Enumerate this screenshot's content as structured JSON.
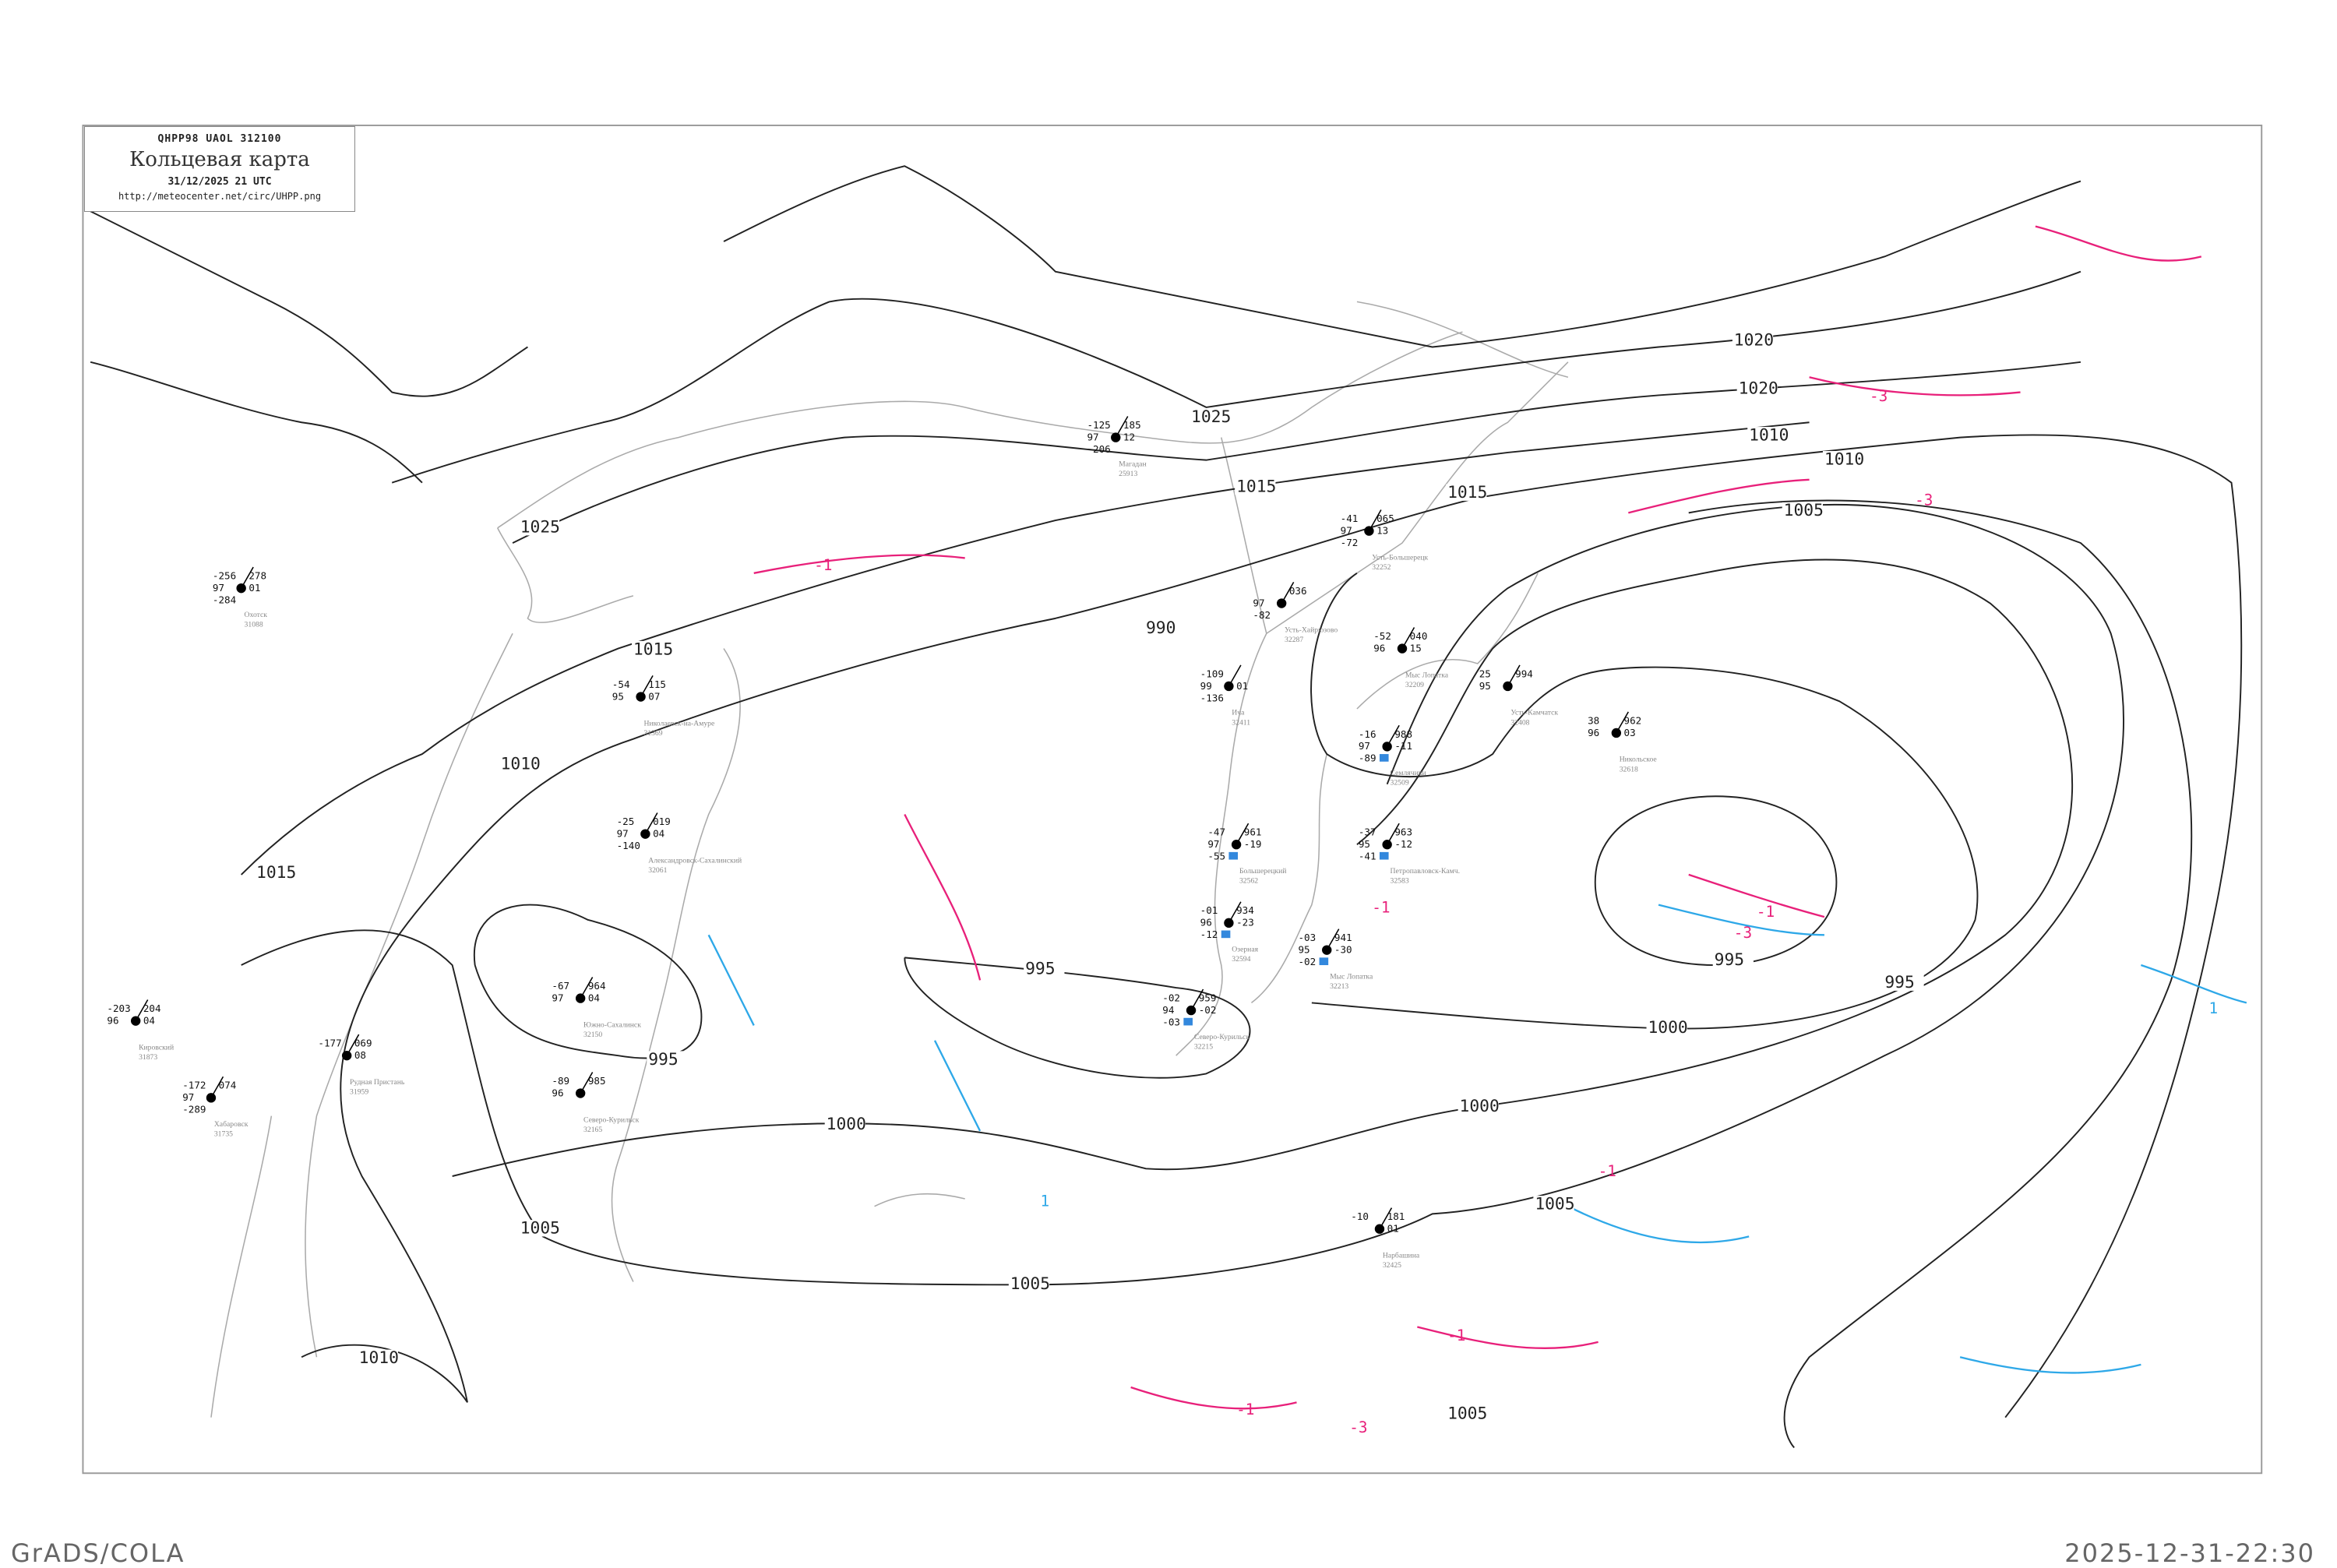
{
  "header": {
    "bulletin": "QHPP98   UAOL   312100",
    "title": "Кольцевая карта",
    "datetime": "31/12/2025 21 UTC",
    "url": "http://meteocenter.net/circ/UHPP.png"
  },
  "footer": {
    "left": "GrADS/COLA",
    "right": "2025-12-31-22:30"
  },
  "colors": {
    "isobar": "#222222",
    "coastline": "#aaaaaa",
    "pressure_fall": "#e8207a",
    "pressure_rise": "#2ea8e8",
    "precip_marker": "#3388dd"
  },
  "isobar_labels": [
    "1025",
    "1025",
    "1020",
    "1020",
    "1015",
    "1015",
    "1015",
    "1010",
    "1010",
    "1010",
    "1005",
    "1005",
    "1005",
    "1005",
    "1000",
    "1000",
    "1000",
    "995",
    "995",
    "995",
    "995",
    "990",
    "1015",
    "1010",
    "1005"
  ],
  "tendency_labels": [
    "-1",
    "-1",
    "-3",
    "-3",
    "-1",
    "-1",
    "-3",
    "1",
    "-1",
    "1",
    "-1",
    "-3"
  ],
  "stations": [
    {
      "name": "Большерецкий",
      "id": "32562",
      "temp": "-47",
      "dew": "-55",
      "pressure": "961",
      "tend": "-19",
      "vis": "97"
    },
    {
      "name": "Петропавловск-Камч.",
      "id": "32583",
      "temp": "-37",
      "dew": "-41",
      "pressure": "963",
      "tend": "-12",
      "vis": "95"
    },
    {
      "name": "Семлячики",
      "id": "32509",
      "temp": "-16",
      "dew": "-89",
      "pressure": "988",
      "tend": "-11",
      "vis": "97"
    },
    {
      "name": "Озерная",
      "id": "32594",
      "temp": "-01",
      "dew": "-12",
      "pressure": "934",
      "tend": "-23",
      "vis": "96"
    },
    {
      "name": "Северо-Курильск",
      "id": "32215",
      "temp": "-02",
      "dew": "-03",
      "pressure": "959",
      "tend": "-02",
      "vis": "94"
    },
    {
      "name": "Мыс Лопатка",
      "id": "32213",
      "temp": "-03",
      "dew": "-02",
      "pressure": "941",
      "tend": "-30",
      "vis": "95"
    },
    {
      "name": "Усть-Камчатск",
      "id": "32408",
      "temp": "25",
      "dew": "",
      "pressure": "994",
      "tend": "",
      "vis": "95"
    },
    {
      "name": "Никольское",
      "id": "32618",
      "temp": "38",
      "dew": "",
      "pressure": "962",
      "tend": "03",
      "vis": "96"
    },
    {
      "name": "Охотск",
      "id": "31088",
      "temp": "-256",
      "dew": "-284",
      "pressure": "278",
      "tend": "01",
      "vis": "97"
    },
    {
      "name": "Магадан",
      "id": "25913",
      "temp": "-125",
      "dew": "-206",
      "pressure": "185",
      "tend": "12",
      "vis": "97"
    },
    {
      "name": "Николаевск-на-Амуре",
      "id": "31369",
      "temp": "-54",
      "dew": "",
      "pressure": "115",
      "tend": "07",
      "vis": "95"
    },
    {
      "name": "Александровск-Сахалинский",
      "id": "32061",
      "temp": "-25",
      "dew": "-140",
      "pressure": "019",
      "tend": "04",
      "vis": "97"
    },
    {
      "name": "Южно-Сахалинск",
      "id": "32150",
      "temp": "-67",
      "dew": "",
      "pressure": "964",
      "tend": "04",
      "vis": "97"
    },
    {
      "name": "Северо-Курильск",
      "id": "32165",
      "temp": "-89",
      "dew": "",
      "pressure": "985",
      "tend": "",
      "vis": "96"
    },
    {
      "name": "Хабаровск",
      "id": "31735",
      "temp": "-172",
      "dew": "-289",
      "pressure": "074",
      "tend": "",
      "vis": "97"
    },
    {
      "name": "Усть-Большерецк",
      "id": "32252",
      "temp": "-41",
      "dew": "-72",
      "pressure": "065",
      "tend": "13",
      "vis": "97"
    },
    {
      "name": "Усть-Хайрюзово",
      "id": "32287",
      "temp": "",
      "dew": "-82",
      "pressure": "036",
      "tend": "",
      "vis": "97"
    },
    {
      "name": "Ича",
      "id": "32411",
      "temp": "-109",
      "dew": "-136",
      "pressure": "",
      "tend": "01",
      "vis": "99"
    },
    {
      "name": "Кировский",
      "id": "31873",
      "temp": "-203",
      "dew": "",
      "pressure": "204",
      "tend": "04",
      "vis": "96"
    },
    {
      "name": "Нарбашина",
      "id": "32425",
      "temp": "-10",
      "dew": "",
      "pressure": "181",
      "tend": "01",
      "vis": ""
    },
    {
      "name": "Мыс Лопатка",
      "id": "32209",
      "temp": "-52",
      "dew": "",
      "pressure": "040",
      "tend": "15",
      "vis": "96"
    },
    {
      "name": "Рудная Пристань",
      "id": "31959",
      "temp": "-177",
      "dew": "",
      "pressure": "069",
      "tend": "08",
      "vis": ""
    }
  ]
}
